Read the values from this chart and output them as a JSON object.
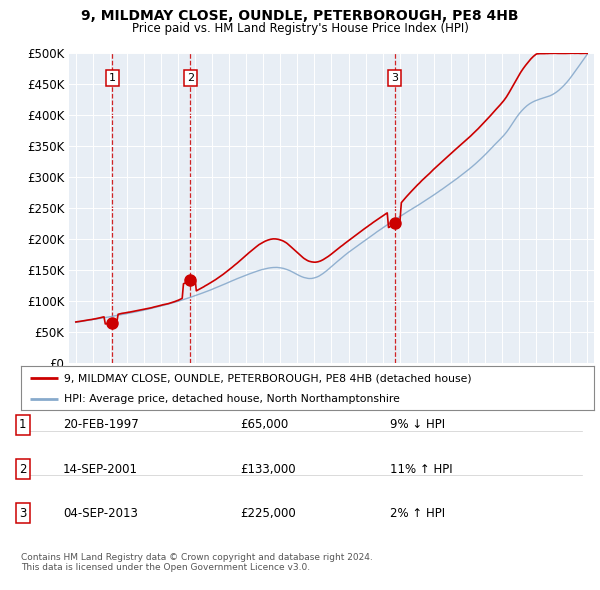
{
  "title1": "9, MILDMAY CLOSE, OUNDLE, PETERBOROUGH, PE8 4HB",
  "title2": "Price paid vs. HM Land Registry's House Price Index (HPI)",
  "legend_label1": "9, MILDMAY CLOSE, OUNDLE, PETERBOROUGH, PE8 4HB (detached house)",
  "legend_label2": "HPI: Average price, detached house, North Northamptonshire",
  "footer1": "Contains HM Land Registry data © Crown copyright and database right 2024.",
  "footer2": "This data is licensed under the Open Government Licence v3.0.",
  "bg_color": "#f0f0f0",
  "plot_bg": "#e8eef5",
  "red_line_color": "#cc0000",
  "blue_line_color": "#88aacc",
  "grid_color": "#ffffff",
  "dashed_color": "#cc0000",
  "ylim": [
    0,
    500000
  ],
  "yticks": [
    0,
    50000,
    100000,
    150000,
    200000,
    250000,
    300000,
    350000,
    400000,
    450000,
    500000
  ],
  "xmin": 1994.6,
  "xmax": 2025.4,
  "trans_years": [
    1997.13,
    2001.71,
    2013.71
  ],
  "trans_prices": [
    65000,
    133000,
    225000
  ],
  "trans_labels": [
    "1",
    "2",
    "3"
  ],
  "trans_dates": [
    "20-FEB-1997",
    "14-SEP-2001",
    "04-SEP-2013"
  ],
  "trans_prices_str": [
    "£65,000",
    "£133,000",
    "£225,000"
  ],
  "trans_hpi": [
    "9% ↓ HPI",
    "11% ↑ HPI",
    "2% ↑ HPI"
  ]
}
